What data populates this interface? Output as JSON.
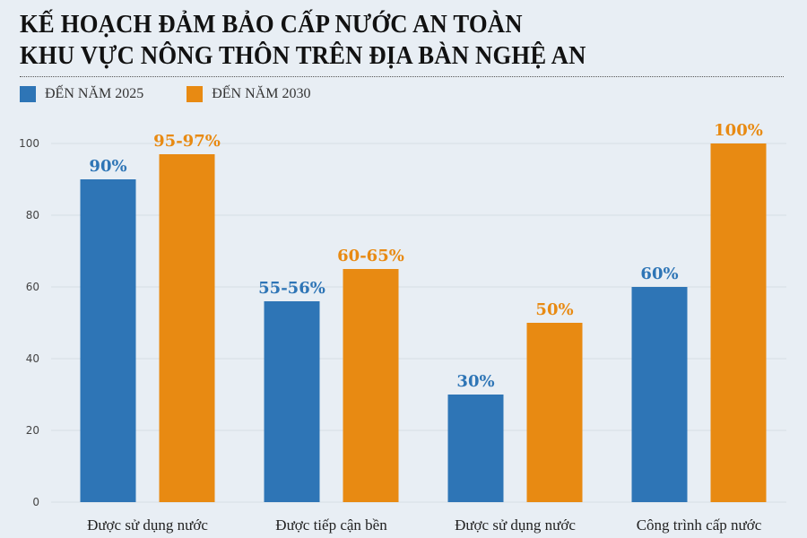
{
  "title": [
    "KẾ HOẠCH ĐẢM BẢO CẤP NƯỚC AN TOÀN",
    "KHU VỰC NÔNG THÔN TRÊN ĐỊA BÀN NGHỆ AN"
  ],
  "chart_data": {
    "type": "bar",
    "title": "KẾ HOẠCH ĐẢM BẢO CẤP NƯỚC AN TOÀN KHU VỰC NÔNG THÔN TRÊN ĐỊA BÀN NGHỆ AN",
    "categories": [
      "Được sử dụng nước",
      "Được tiếp cận bền",
      "Được sử dụng nước",
      "Công trình cấp nước"
    ],
    "series": [
      {
        "name": "ĐẾN NĂM 2025",
        "color": "#2e75b6",
        "values": [
          90,
          56,
          30,
          60
        ],
        "labels": [
          "90%",
          "55-56%",
          "30%",
          "60%"
        ]
      },
      {
        "name": "ĐẾN NĂM 2030",
        "color": "#e88a12",
        "values": [
          97,
          65,
          50,
          100
        ],
        "labels": [
          "95-97%",
          "60-65%",
          "50%",
          "100%"
        ]
      }
    ],
    "ylim": [
      0,
      100
    ],
    "yticks": [
      0,
      20,
      40,
      60,
      80,
      100
    ],
    "grid": true,
    "legend": "top-left"
  }
}
